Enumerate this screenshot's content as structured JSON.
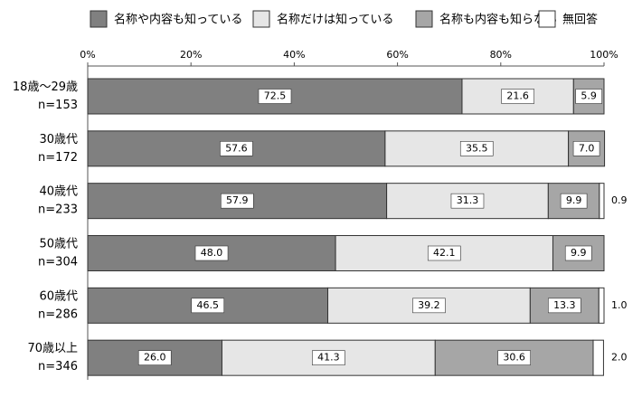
{
  "chart_data": {
    "type": "stacked-bar-horizontal",
    "categories": [
      "18歳～29歳",
      "30歳代",
      "40歳代",
      "50歳代",
      "60歳代",
      "70歳以上"
    ],
    "sample_sizes": [
      "n=153",
      "n=172",
      "n=233",
      "n=304",
      "n=286",
      "n=346"
    ],
    "series": [
      {
        "name": "名称や内容も知っている",
        "color": "#808080",
        "values": [
          72.5,
          57.6,
          57.9,
          48.0,
          46.5,
          26.0
        ],
        "value_labels": [
          "72.5",
          "57.6",
          "57.9",
          "48.0",
          "46.5",
          "26.0"
        ]
      },
      {
        "name": "名称だけは知っている",
        "color": "#e6e6e6",
        "values": [
          21.6,
          35.5,
          31.3,
          42.1,
          39.2,
          41.3
        ],
        "value_labels": [
          "21.6",
          "35.5",
          "31.3",
          "42.1",
          "39.2",
          "41.3"
        ]
      },
      {
        "name": "名称も内容も知らない",
        "color": "#a6a6a6",
        "values": [
          5.9,
          7.0,
          9.9,
          9.9,
          13.3,
          30.6
        ],
        "value_labels": [
          "5.9",
          "7.0",
          "9.9",
          "9.9",
          "13.3",
          "30.6"
        ]
      },
      {
        "name": "無回答",
        "color": "#ffffff",
        "values": [
          null,
          null,
          0.9,
          null,
          1.0,
          2.0
        ],
        "value_labels": [
          null,
          null,
          "0.9",
          null,
          "1.0",
          "2.0"
        ]
      }
    ],
    "xlim": [
      0,
      100
    ],
    "xticks": [
      {
        "value": 0,
        "label": "0%"
      },
      {
        "value": 20,
        "label": "20%"
      },
      {
        "value": 40,
        "label": "40%"
      },
      {
        "value": 60,
        "label": "60%"
      },
      {
        "value": 80,
        "label": "80%"
      },
      {
        "value": 100,
        "label": "100%"
      }
    ]
  }
}
